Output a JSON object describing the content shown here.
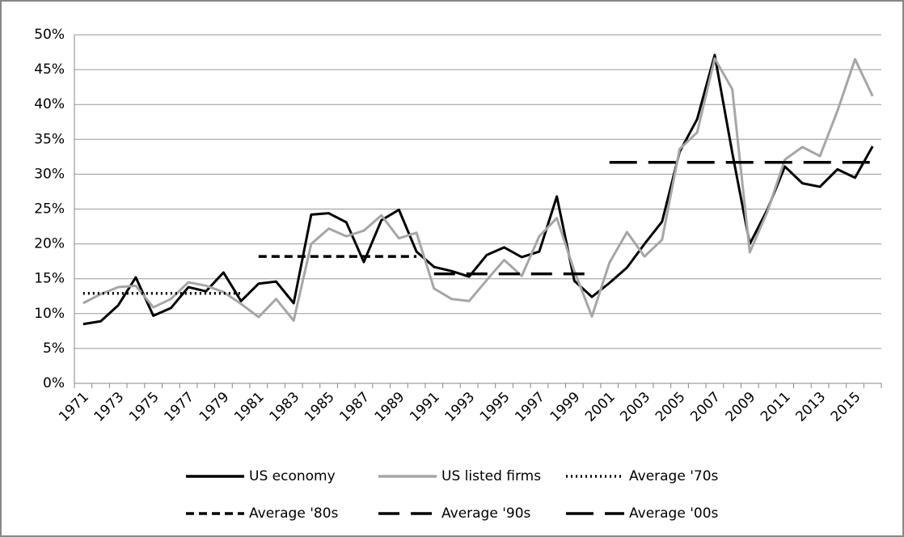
{
  "chart_data": {
    "type": "line",
    "categories": [
      "1971",
      null,
      "1973",
      null,
      "1975",
      null,
      "1977",
      null,
      "1979",
      null,
      "1981",
      null,
      "1983",
      null,
      "1985",
      null,
      "1987",
      null,
      "1989",
      null,
      "1991",
      null,
      "1993",
      null,
      "1995",
      null,
      "1997",
      null,
      "1999",
      null,
      "2001",
      null,
      "2003",
      null,
      "2005",
      null,
      "2007",
      null,
      "2009",
      null,
      "2011",
      null,
      "2013",
      null,
      "2015",
      null
    ],
    "series": [
      {
        "name": "US economy",
        "color": "#000000",
        "line_style": "solid",
        "values": [
          8.5,
          8.9,
          11.2,
          15.2,
          9.7,
          10.8,
          13.8,
          13.2,
          15.9,
          11.8,
          14.3,
          14.6,
          11.5,
          24.2,
          24.4,
          23.1,
          17.4,
          23.4,
          24.9,
          18.9,
          16.7,
          16.1,
          15.3,
          18.4,
          19.5,
          18.1,
          18.9,
          26.8,
          14.7,
          12.4,
          14.4,
          16.6,
          20.0,
          23.2,
          33.2,
          37.9,
          47.1,
          33.1,
          20.0,
          24.9,
          31.1,
          28.7,
          28.2,
          30.7,
          29.5,
          34.0
        ]
      },
      {
        "name": "US listed firms",
        "color": "#a6a6a6",
        "line_style": "solid",
        "values": [
          11.5,
          12.8,
          13.8,
          14.0,
          10.9,
          12.1,
          14.5,
          14.0,
          13.1,
          11.4,
          9.5,
          12.1,
          9.0,
          20.0,
          22.2,
          21.1,
          21.9,
          24.1,
          20.8,
          21.6,
          13.6,
          12.1,
          11.8,
          14.8,
          17.7,
          15.4,
          21.1,
          23.7,
          16.1,
          9.6,
          17.3,
          21.7,
          18.2,
          20.6,
          33.6,
          36.0,
          46.6,
          42.2,
          18.8,
          24.6,
          32.1,
          33.9,
          32.6,
          39.1,
          46.5,
          41.2
        ]
      },
      {
        "name": "Average '70s",
        "color": "#000000",
        "line_style": "dotted",
        "values": [
          12.9,
          12.9,
          12.9,
          12.9,
          12.9,
          12.9,
          12.9,
          12.9,
          12.9,
          12.9,
          null,
          null,
          null,
          null,
          null,
          null,
          null,
          null,
          null,
          null,
          null,
          null,
          null,
          null,
          null,
          null,
          null,
          null,
          null,
          null,
          null,
          null,
          null,
          null,
          null,
          null,
          null,
          null,
          null,
          null,
          null,
          null,
          null,
          null,
          null,
          null
        ]
      },
      {
        "name": "Average '80s",
        "color": "#000000",
        "line_style": "dashed",
        "values": [
          null,
          null,
          null,
          null,
          null,
          null,
          null,
          null,
          null,
          null,
          18.2,
          18.2,
          18.2,
          18.2,
          18.2,
          18.2,
          18.2,
          18.2,
          18.2,
          18.2,
          null,
          null,
          null,
          null,
          null,
          null,
          null,
          null,
          null,
          null,
          null,
          null,
          null,
          null,
          null,
          null,
          null,
          null,
          null,
          null,
          null,
          null,
          null,
          null,
          null,
          null
        ]
      },
      {
        "name": "Average '90s",
        "color": "#000000",
        "line_style": "long-dashed",
        "values": [
          null,
          null,
          null,
          null,
          null,
          null,
          null,
          null,
          null,
          null,
          null,
          null,
          null,
          null,
          null,
          null,
          null,
          null,
          null,
          null,
          15.7,
          15.7,
          15.7,
          15.7,
          15.7,
          15.7,
          15.7,
          15.7,
          15.7,
          15.7,
          null,
          null,
          null,
          null,
          null,
          null,
          null,
          null,
          null,
          null,
          null,
          null,
          null,
          null,
          null,
          null
        ]
      },
      {
        "name": "Average '00s",
        "color": "#000000",
        "line_style": "extra-long-dashed",
        "values": [
          null,
          null,
          null,
          null,
          null,
          null,
          null,
          null,
          null,
          null,
          null,
          null,
          null,
          null,
          null,
          null,
          null,
          null,
          null,
          null,
          null,
          null,
          null,
          null,
          null,
          null,
          null,
          null,
          null,
          null,
          31.7,
          31.7,
          31.7,
          31.7,
          31.7,
          31.7,
          31.7,
          31.7,
          31.7,
          31.7,
          31.7,
          31.7,
          31.7,
          31.7,
          31.7,
          31.7
        ]
      }
    ],
    "ylim": [
      0,
      50
    ],
    "yticks": [
      {
        "value": 0,
        "label": "0%"
      },
      {
        "value": 5,
        "label": "5%"
      },
      {
        "value": 10,
        "label": "10%"
      },
      {
        "value": 15,
        "label": "15%"
      },
      {
        "value": 20,
        "label": "20%"
      },
      {
        "value": 25,
        "label": "25%"
      },
      {
        "value": 30,
        "label": "30%"
      },
      {
        "value": 35,
        "label": "35%"
      },
      {
        "value": 40,
        "label": "40%"
      },
      {
        "value": 45,
        "label": "45%"
      },
      {
        "value": 50,
        "label": "50%"
      }
    ],
    "grid": true,
    "legend": "bottom"
  }
}
